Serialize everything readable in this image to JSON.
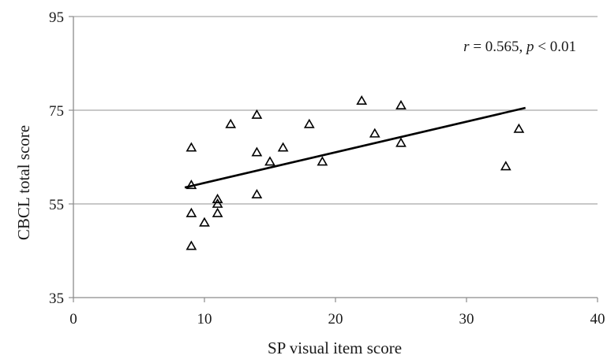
{
  "chart_data": {
    "type": "scatter",
    "xlabel": "SP visual  item score",
    "ylabel": "CBCL total score",
    "xlim": [
      0,
      40
    ],
    "ylim": [
      35,
      95
    ],
    "x_ticks": [
      "0",
      "10",
      "20",
      "30",
      "40"
    ],
    "y_ticks": [
      "35",
      "55",
      "75",
      "95"
    ],
    "grid": "horizontal",
    "marker": "open-triangle",
    "annotation": {
      "r_symbol": "r",
      "r_text": " = 0.565, ",
      "p_symbol": "p",
      "p_text": " < 0.01"
    },
    "trendline": {
      "x": [
        8.5,
        34.5
      ],
      "y": [
        58.5,
        75.5
      ]
    },
    "points": [
      {
        "x": 9,
        "y": 46
      },
      {
        "x": 9,
        "y": 53
      },
      {
        "x": 9,
        "y": 59
      },
      {
        "x": 9,
        "y": 67
      },
      {
        "x": 10,
        "y": 51
      },
      {
        "x": 11,
        "y": 53
      },
      {
        "x": 11,
        "y": 55
      },
      {
        "x": 11,
        "y": 56
      },
      {
        "x": 12,
        "y": 72
      },
      {
        "x": 14,
        "y": 57
      },
      {
        "x": 14,
        "y": 66
      },
      {
        "x": 14,
        "y": 74
      },
      {
        "x": 15,
        "y": 64
      },
      {
        "x": 16,
        "y": 67
      },
      {
        "x": 18,
        "y": 72
      },
      {
        "x": 19,
        "y": 64
      },
      {
        "x": 22,
        "y": 77
      },
      {
        "x": 23,
        "y": 70
      },
      {
        "x": 25,
        "y": 68
      },
      {
        "x": 25,
        "y": 76
      },
      {
        "x": 33,
        "y": 63
      },
      {
        "x": 34,
        "y": 71
      }
    ]
  }
}
